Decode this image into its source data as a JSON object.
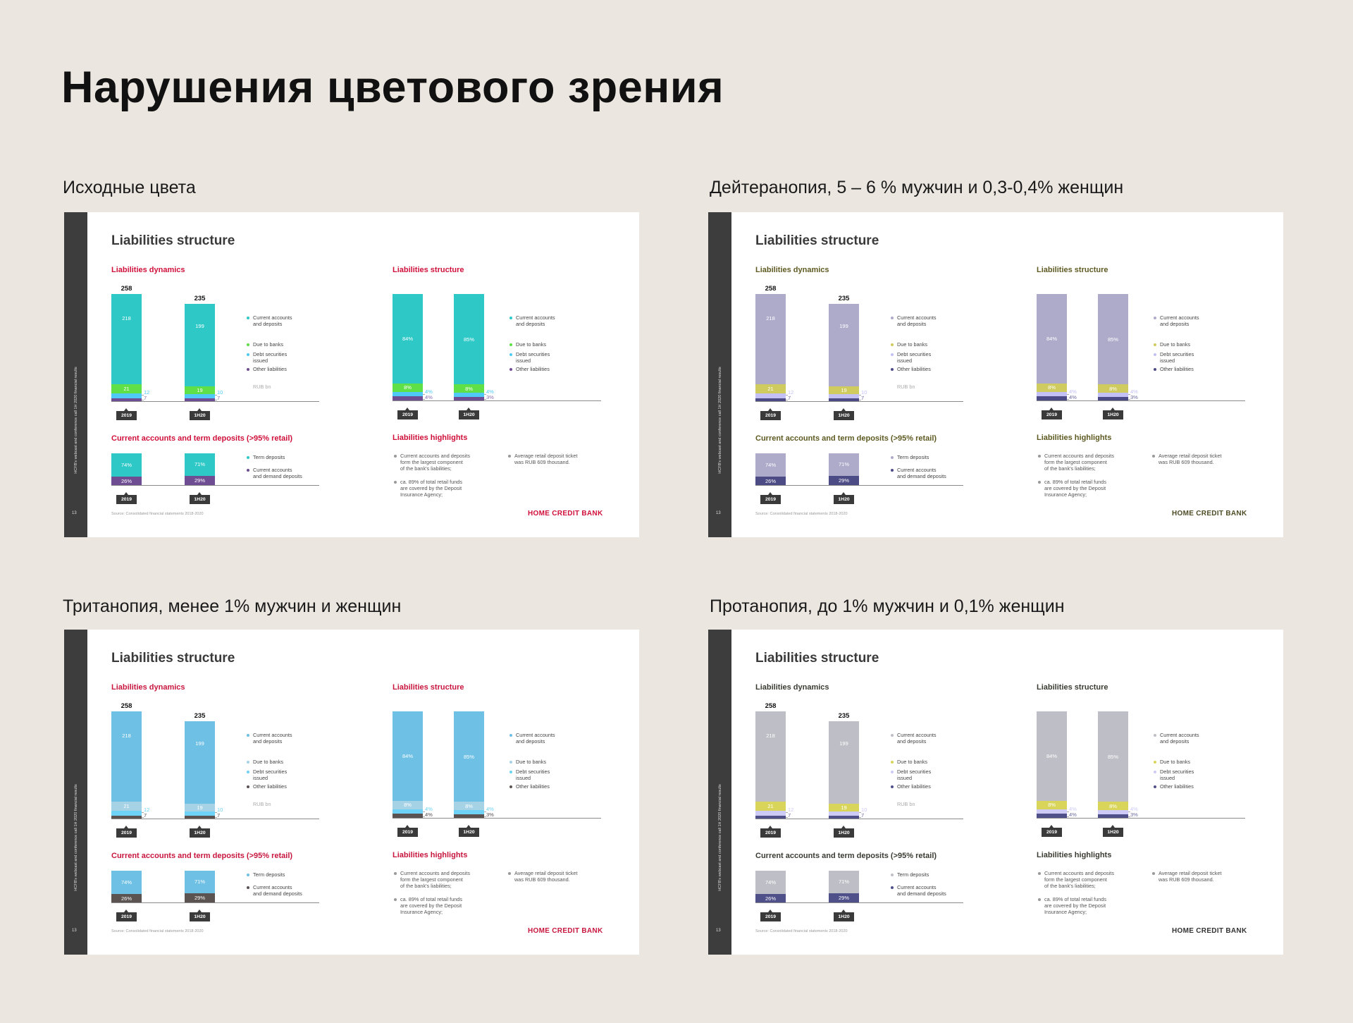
{
  "page_title": "Нарушения цветового зрения",
  "variants": [
    {
      "label": "Исходные цвета",
      "colors": {
        "main": "#2ec8c6",
        "due": "#5ee046",
        "debt": "#4fcaf6",
        "other": "#6e4d93",
        "other_label": "#8a6fb5",
        "heading": "#d0103a",
        "logo": "#d0103a"
      }
    },
    {
      "label": "Дейтеранопия, 5 – 6 % мужчин и 0,3-0,4% женщин",
      "colors": {
        "main": "#aeabca",
        "due": "#cfcb5e",
        "debt": "#c3c0f5",
        "other": "#4d4b85",
        "other_label": "#6d6ba0",
        "heading": "#5e5a22",
        "logo": "#4e4c26"
      }
    },
    {
      "label": "Тританопия, менее 1% мужчин и женщин",
      "colors": {
        "main": "#6ec0e4",
        "due": "#a6d2e6",
        "debt": "#6ed2f6",
        "other": "#5b5252",
        "other_label": "#5b5252",
        "heading": "#c8163e",
        "logo": "#c8163e"
      }
    },
    {
      "label": "Протанопия, до 1% мужчин и 0,1% женщин",
      "colors": {
        "main": "#bebec6",
        "due": "#d8d55a",
        "debt": "#cdcaf5",
        "other": "#4f4f8a",
        "other_label": "#6d6da0",
        "heading": "#3b3b33",
        "logo": "#333333"
      }
    }
  ],
  "slide": {
    "side_text": "HCFB's webcast and conference call 1H 2020 financial results",
    "page_number": "13",
    "title": "Liabilities structure",
    "dynamics": {
      "heading": "Liabilities dynamics",
      "legend": [
        "Current accounts\nand deposits",
        "Due to banks",
        "Debt securities\nissued",
        "Other liabilities"
      ],
      "unit": "RUB bn"
    },
    "structure": {
      "heading": "Liabilities structure",
      "legend": [
        "Current accounts\nand deposits",
        "Due to banks",
        "Debt securities\nissued",
        "Other liabilities"
      ]
    },
    "deposits": {
      "heading": "Current accounts and term deposits (>95% retail)",
      "legend": [
        "Term deposits",
        "Current accounts\nand demand deposits"
      ]
    },
    "highlights": {
      "heading": "Liabilities highlights",
      "bullets": [
        "Current accounts and deposits\nform the largest component\nof the bank's liabilities;",
        "ca. 89% of total retail funds\nare covered by the Deposit\nInsurance Agency;",
        "Average retail deposit ticket\nwas RUB 609 thousand."
      ]
    },
    "source": "Source: Consolidated financial statements 2018-2020",
    "logo": "HOME CREDIT BANK"
  },
  "chart_data": [
    {
      "type": "bar",
      "title": "Liabilities dynamics",
      "stacked": true,
      "unit": "RUB bn",
      "categories": [
        "2019",
        "1H20"
      ],
      "totals": [
        "258",
        "235"
      ],
      "series": [
        {
          "name": "Current accounts and deposits",
          "values": [
            218,
            199
          ],
          "labels": [
            "218",
            "199"
          ]
        },
        {
          "name": "Due to banks",
          "values": [
            21,
            19
          ],
          "labels": [
            "21",
            "19"
          ]
        },
        {
          "name": "Debt securities issued",
          "values": [
            12,
            10
          ],
          "labels": [
            "12",
            "10"
          ]
        },
        {
          "name": "Other liabilities",
          "values": [
            7,
            7
          ],
          "labels": [
            "7",
            "7"
          ]
        }
      ]
    },
    {
      "type": "bar",
      "title": "Liabilities structure",
      "stacked": true,
      "unit": "%",
      "categories": [
        "2019",
        "1H20"
      ],
      "series": [
        {
          "name": "Current accounts and deposits",
          "values": [
            84,
            85
          ],
          "labels": [
            "84%",
            "85%"
          ]
        },
        {
          "name": "Due to banks",
          "values": [
            8,
            8
          ],
          "labels": [
            "8%",
            "8%"
          ]
        },
        {
          "name": "Debt securities issued",
          "values": [
            4,
            4
          ],
          "labels": [
            "4%",
            "4%"
          ]
        },
        {
          "name": "Other liabilities",
          "values": [
            4,
            3
          ],
          "labels": [
            "4%",
            "3%"
          ]
        }
      ]
    },
    {
      "type": "bar",
      "title": "Current accounts and term deposits (>95% retail)",
      "stacked": true,
      "unit": "%",
      "categories": [
        "2019",
        "1H20"
      ],
      "series": [
        {
          "name": "Term deposits",
          "values": [
            74,
            71
          ],
          "labels": [
            "74%",
            "71%"
          ]
        },
        {
          "name": "Current accounts and demand deposits",
          "values": [
            26,
            29
          ],
          "labels": [
            "26%",
            "29%"
          ]
        }
      ]
    }
  ]
}
